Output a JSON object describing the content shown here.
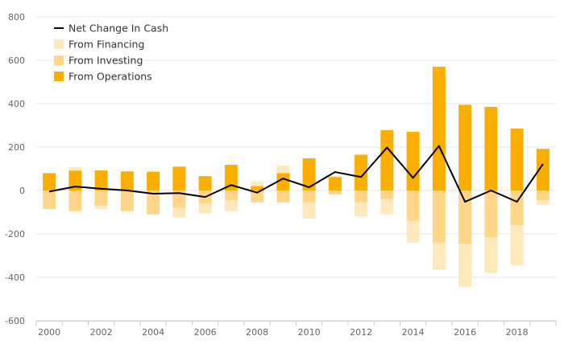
{
  "chart_data": {
    "type": "bar",
    "title": "",
    "xlabel": "",
    "ylabel": "",
    "ylim": [
      -600,
      800
    ],
    "yticks": [
      -600,
      -400,
      -200,
      0,
      200,
      400,
      600,
      800
    ],
    "grid": true,
    "legend_position": "top-left",
    "categories": [
      "2000",
      "2001",
      "2002",
      "2003",
      "2004",
      "2005",
      "2006",
      "2007",
      "2008",
      "2009",
      "2010",
      "2011",
      "2012",
      "2013",
      "2014",
      "2015",
      "2016",
      "2017",
      "2018",
      "2019"
    ],
    "x_tick_labels": [
      "2000",
      "2002",
      "2004",
      "2006",
      "2008",
      "2010",
      "2012",
      "2014",
      "2016",
      "2018"
    ],
    "series": [
      {
        "name": "From Operations",
        "color": "#f9ae00",
        "values": [
          80,
          92,
          92,
          88,
          86,
          110,
          66,
          118,
          20,
          80,
          148,
          62,
          165,
          278,
          270,
          570,
          395,
          385,
          285,
          192
        ]
      },
      {
        "name": "From Investing",
        "color": "#fdd68a",
        "values": [
          -85,
          -95,
          -70,
          -95,
          -110,
          -80,
          -60,
          -45,
          -55,
          -55,
          -55,
          -18,
          -55,
          -40,
          -140,
          -240,
          -245,
          -215,
          -160,
          -45
        ]
      },
      {
        "name": "From Financing",
        "color": "#fee9bd",
        "values": [
          0,
          15,
          -15,
          0,
          5,
          -45,
          -45,
          -50,
          20,
          35,
          -75,
          5,
          -65,
          -70,
          -100,
          -125,
          -200,
          -165,
          -185,
          -20
        ]
      },
      {
        "name": "Net Change In Cash",
        "type": "line",
        "color": "#000000",
        "values": [
          -5,
          18,
          8,
          0,
          -15,
          -12,
          -30,
          25,
          -10,
          55,
          15,
          85,
          62,
          198,
          58,
          205,
          -52,
          0,
          -52,
          122
        ]
      }
    ],
    "legend": [
      {
        "label": "Net Change In Cash",
        "kind": "line",
        "color": "#000000"
      },
      {
        "label": "From Financing",
        "kind": "box",
        "color": "#fee9bd"
      },
      {
        "label": "From Investing",
        "kind": "box",
        "color": "#fdd68a"
      },
      {
        "label": "From Operations",
        "kind": "box",
        "color": "#f9ae00"
      }
    ]
  }
}
